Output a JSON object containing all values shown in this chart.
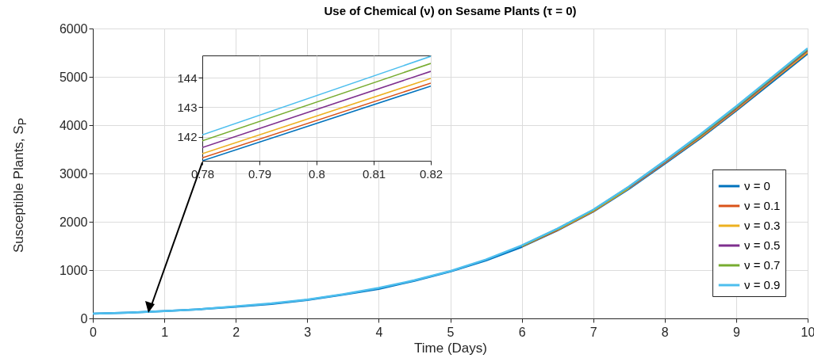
{
  "chart_data": [
    {
      "type": "line",
      "title": "Use of Chemical  (ν) on  Sesame Plants (τ = 0)",
      "xlabel": "Time (Days)",
      "ylabel": "Susceptible Plants, S$_{P}$",
      "x": [
        0,
        0.5,
        1,
        1.5,
        2,
        2.5,
        3,
        3.5,
        4,
        4.5,
        5,
        5.5,
        6,
        6.5,
        7,
        7.5,
        8,
        8.5,
        9,
        9.5,
        10
      ],
      "series": [
        {
          "name": "ν = 0",
          "color": "#0072bd",
          "values": [
            100,
            120,
            150,
            190,
            240,
            300,
            380,
            490,
            610,
            780,
            970,
            1200,
            1480,
            1820,
            2210,
            2680,
            3200,
            3730,
            4300,
            4890,
            5480
          ]
        },
        {
          "name": "ν = 0.1",
          "color": "#d95319",
          "values": [
            null,
            null,
            null,
            null,
            null,
            null,
            null,
            null,
            null,
            null,
            null,
            null,
            1490,
            1830,
            2220,
            2700,
            3220,
            3750,
            4320,
            4920,
            5510
          ]
        },
        {
          "name": "ν = 0.3",
          "color": "#edb120",
          "values": [
            null,
            null,
            null,
            null,
            null,
            null,
            null,
            null,
            null,
            null,
            null,
            null,
            null,
            1840,
            2230,
            2700,
            3230,
            3760,
            4330,
            4930,
            5520
          ]
        },
        {
          "name": "ν = 0.5",
          "color": "#7e2f8e",
          "values": [
            null,
            null,
            null,
            null,
            null,
            null,
            null,
            null,
            null,
            null,
            null,
            null,
            null,
            null,
            null,
            2710,
            3240,
            3780,
            4350,
            4950,
            5550
          ]
        },
        {
          "name": "ν = 0.7",
          "color": "#77ac30",
          "values": [
            null,
            null,
            null,
            null,
            null,
            null,
            null,
            null,
            null,
            null,
            null,
            null,
            1500,
            1850,
            2240,
            2720,
            3250,
            3790,
            4370,
            4970,
            5570
          ]
        },
        {
          "name": "ν = 0.9",
          "color": "#4dbeee",
          "values": [
            100,
            120,
            150,
            190,
            250,
            310,
            390,
            500,
            630,
            790,
            980,
            1220,
            1510,
            1860,
            2250,
            2730,
            3260,
            3810,
            4390,
            4990,
            5590
          ]
        }
      ],
      "xlim": [
        0,
        10
      ],
      "xticks": [
        0,
        1,
        2,
        3,
        4,
        5,
        6,
        7,
        8,
        9,
        10
      ],
      "ylim": [
        0,
        6000
      ],
      "yticks": [
        0,
        1000,
        2000,
        3000,
        4000,
        5000,
        6000
      ],
      "grid": true,
      "legend": "bottom right"
    },
    {
      "type": "line",
      "x": [
        0.78,
        0.82
      ],
      "series": [
        {
          "color": "#0072bd",
          "values": [
            141.18,
            143.72
          ]
        },
        {
          "color": "#d95319",
          "values": [
            141.28,
            143.82
          ]
        },
        {
          "color": "#edb120",
          "values": [
            141.42,
            143.98
          ]
        },
        {
          "color": "#7e2f8e",
          "values": [
            141.63,
            144.22
          ]
        },
        {
          "color": "#77ac30",
          "values": [
            141.86,
            144.49
          ]
        },
        {
          "color": "#4dbeee",
          "values": [
            142.06,
            144.73
          ]
        }
      ],
      "xlim": [
        0.78,
        0.82
      ],
      "xticks": [
        0.78,
        0.79,
        0.8,
        0.81,
        0.82
      ],
      "ylim": [
        141.18,
        144.76
      ],
      "yticks": [
        142,
        143,
        144
      ],
      "grid": true
    }
  ]
}
